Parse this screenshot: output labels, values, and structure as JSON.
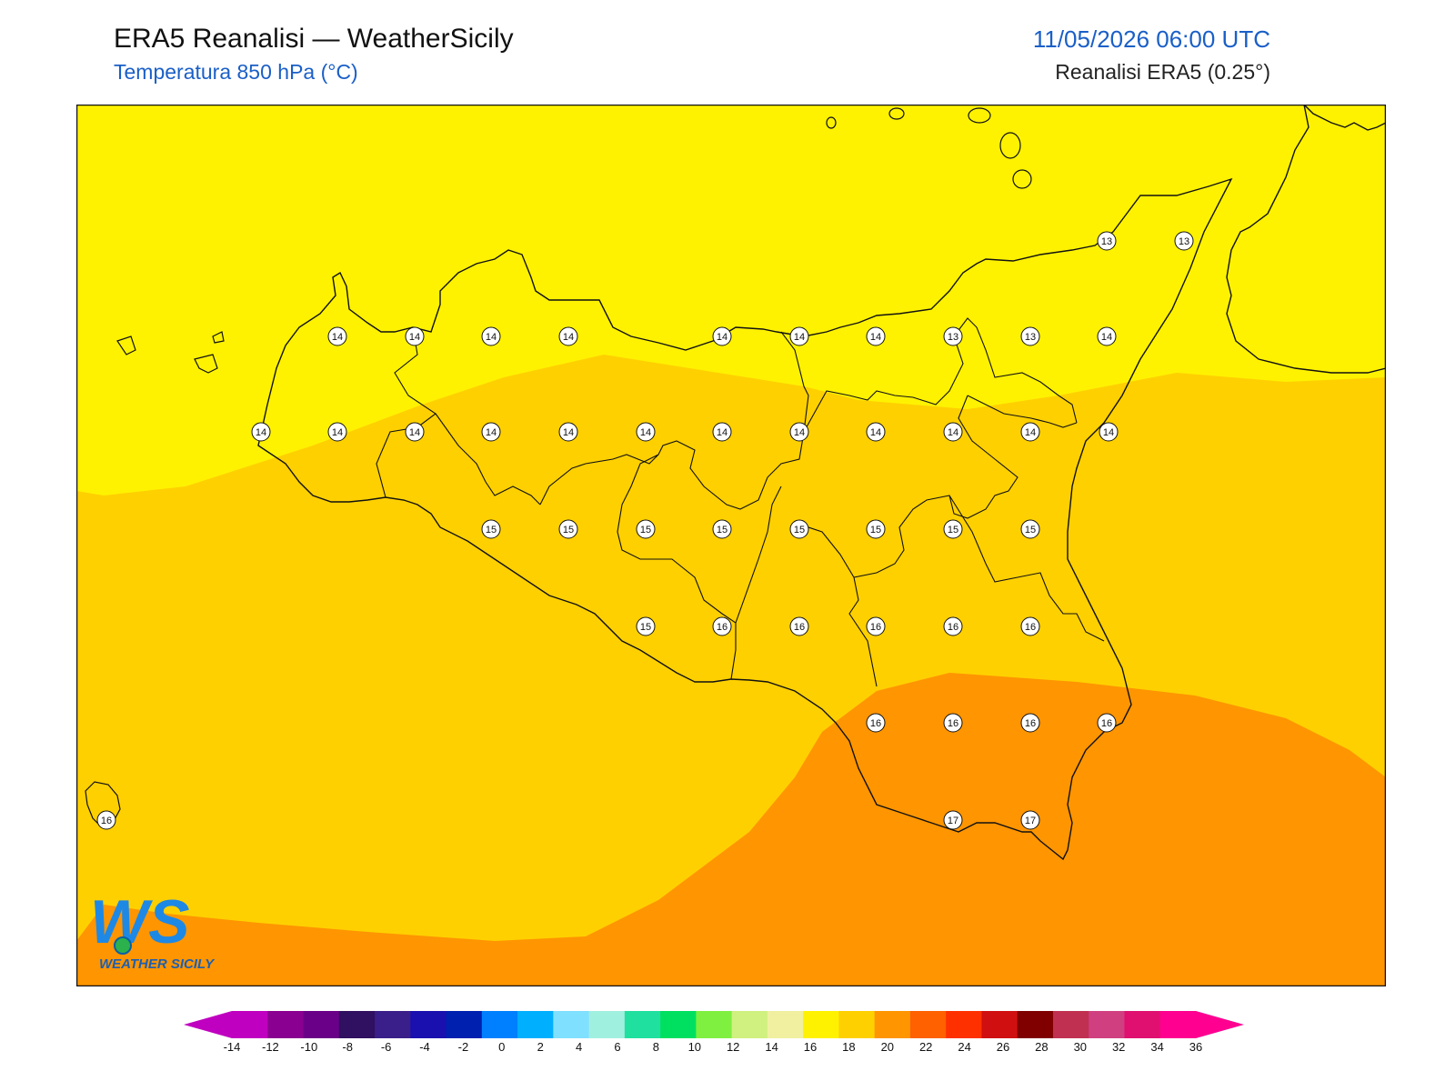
{
  "header": {
    "title": "ERA5 Reanalisi — WeatherSicily",
    "subtitle": "Temperatura 850 hPa (°C)",
    "datetime": "11/05/2026 06:00 UTC",
    "source": "Reanalisi ERA5 (0.25°)"
  },
  "map": {
    "grid_values": [
      [
        "14",
        "14",
        "14",
        "14",
        "14",
        "14",
        "14",
        "13",
        "13",
        "14"
      ],
      [
        "14",
        "14",
        "14",
        "14",
        "14",
        "14",
        "14",
        "14",
        "14",
        "14",
        "14",
        "14"
      ],
      [
        "15",
        "15",
        "15",
        "15",
        "15",
        "15",
        "15",
        "15"
      ],
      [
        "15",
        "16",
        "16",
        "16",
        "16",
        "16"
      ],
      [
        "16",
        "16",
        "16",
        "16"
      ],
      [
        "17",
        "17"
      ]
    ],
    "top_labels": [
      "13",
      "13"
    ],
    "island_label": "16",
    "colors": {
      "band_12_14": "#fff200",
      "band_14_16": "#ffd000",
      "band_16_18": "#ff9500",
      "coast": "#111111"
    }
  },
  "colorbar": {
    "ticks": [
      "-14",
      "-12",
      "-10",
      "-8",
      "-6",
      "-4",
      "-2",
      "0",
      "2",
      "4",
      "6",
      "8",
      "10",
      "12",
      "14",
      "16",
      "18",
      "20",
      "22",
      "24",
      "26",
      "28",
      "30",
      "32",
      "34",
      "36"
    ],
    "colors": [
      "#c000c0",
      "#8a0090",
      "#6a0088",
      "#301060",
      "#3a1f8a",
      "#1a10b0",
      "#0020b0",
      "#0080ff",
      "#00b0ff",
      "#80e0ff",
      "#a0f0e0",
      "#20e0a0",
      "#00e060",
      "#80f040",
      "#d0f080",
      "#f0f0a0",
      "#fff200",
      "#ffd000",
      "#ff9500",
      "#ff6000",
      "#ff3000",
      "#d01010",
      "#800000",
      "#c03050",
      "#d04080",
      "#e01070",
      "#ff0090"
    ],
    "low_color": "#c000c0",
    "high_color": "#ff0090"
  },
  "logo": {
    "text": "WEATHER SICILY",
    "letters": "WS"
  }
}
